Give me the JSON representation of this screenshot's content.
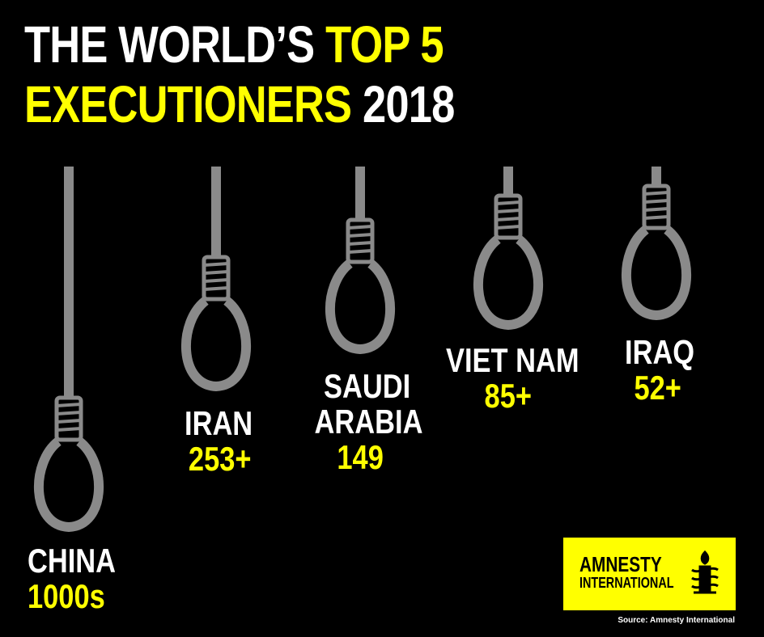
{
  "title": {
    "line1_white": "THE WORLD’S",
    "line1_yellow": "TOP 5",
    "line2_yellow": "EXECUTIONERS",
    "line2_white": "2018"
  },
  "countries": [
    {
      "name": "CHINA",
      "count": "1000s"
    },
    {
      "name": "IRAN",
      "count": "253+"
    },
    {
      "name_line1": "SAUDI",
      "name_line2": "ARABIA",
      "count": "149"
    },
    {
      "name": "VIET NAM",
      "count": "85+"
    },
    {
      "name": "IRAQ",
      "count": "52+"
    }
  ],
  "logo": {
    "line1": "AMNESTY",
    "line2": "INTERNATIONAL",
    "icon": "candle-barbed-wire-icon"
  },
  "source": "Source: Amnesty International",
  "colors": {
    "background": "#000000",
    "accent": "#ffff00",
    "rope": "#8a8a8a",
    "text": "#ffffff"
  }
}
